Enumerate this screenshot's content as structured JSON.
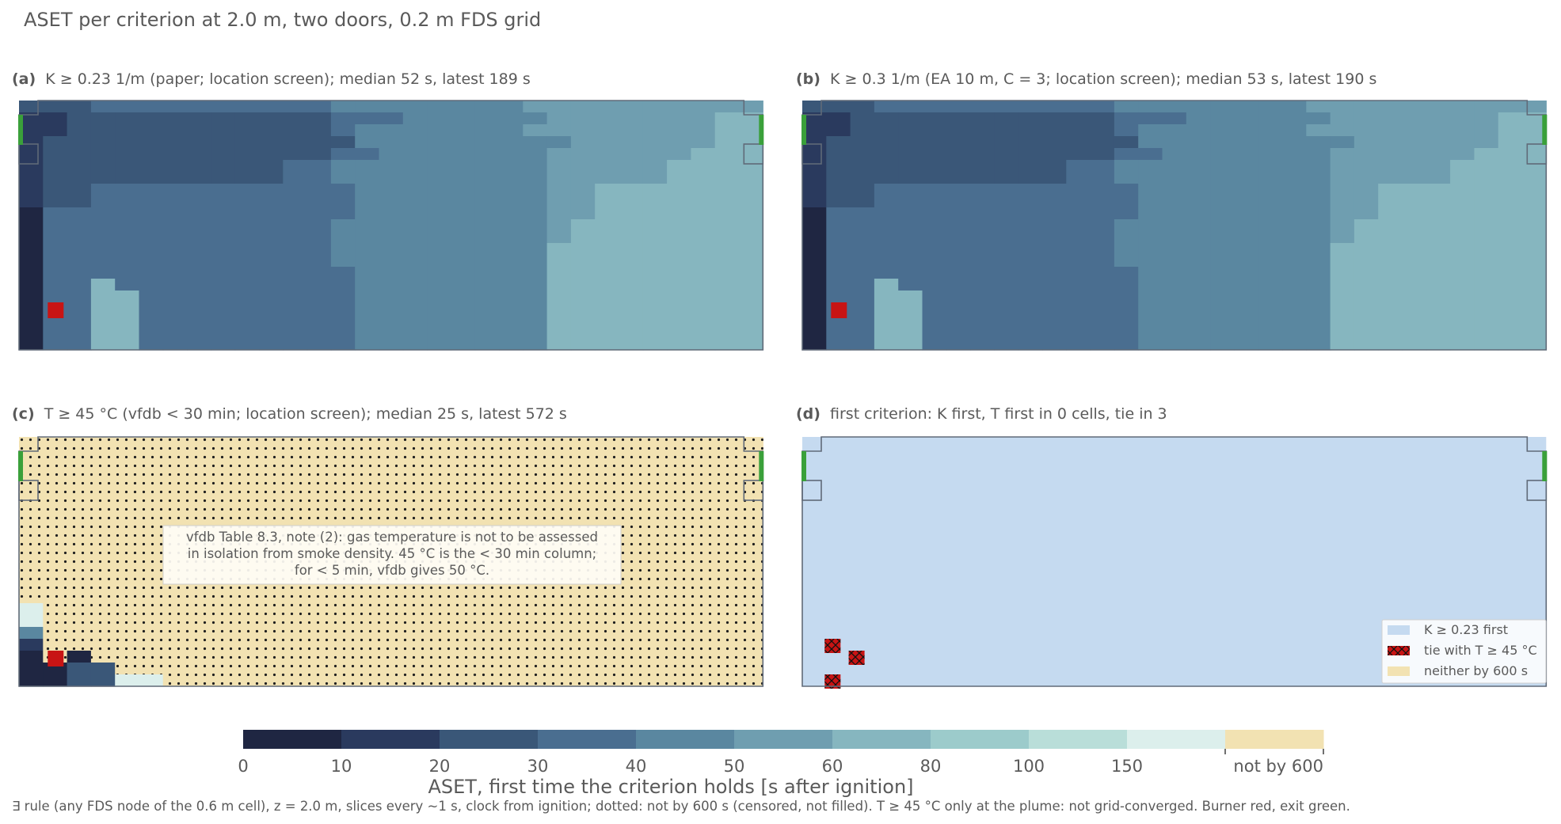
{
  "suptitle": "ASET per criterion at 2.0 m, two doors, 0.2 m FDS grid",
  "footnote": "∃ rule (any FDS node of the 0.6 m cell), z = 2.0 m, slices every ~1 s, clock from ignition; dotted: not by 600 s (censored, not filled). T ≥ 45 °C only at the plume: not grid-converged. Burner red, exit green.",
  "colors": {
    "bins": [
      "#1f2642",
      "#2a3a5e",
      "#3a5778",
      "#4a6e90",
      "#5a87a0",
      "#6f9eb0",
      "#86b6bf",
      "#9ccbcb",
      "#b9ded9",
      "#dcefec"
    ],
    "not_by_600": "#f2e2b2",
    "burner": "#c81414",
    "exit": "#3aa03a",
    "k_first": "#c5daf0",
    "tie": "#c81414",
    "outline": "#606a78"
  },
  "chart_data": [
    {
      "type": "heatmap",
      "panel": "(a)",
      "title": "K ≥ 0.23 1/m (paper; location screen); median 52 s, latest 189 s",
      "criterion": "K ≥ 0.23 1/m",
      "median_s": 52,
      "latest_s": 189,
      "grid_units": "ASET bin index (0–9, see colorbar); 10 = not by 600 s",
      "cells": [
        "2223333333333444444445555555555",
        "1122222222222333444444555555566",
        "1122222222222344444445555555566",
        "1222222222222244444444455555566",
        "1222222222222334444444555555666",
        "1222222222233444444444555556666",
        "1222222222233444444444555556666",
        "1223333333333344444444556666666",
        "1223333333333344444444556666666",
        "0333333333333344444444556666666",
        "0333333333333444444444566666666",
        "0333333333333444444444566666666",
        "0333333333333444444444666666666",
        "0333333333333444444444666666666",
        "0333333333333344444444666666666",
        "0336333333333344444444666666666",
        "0336633333333344444444666666666",
        "0336633333333344444444666666666",
        "0336633333333344444444666666666",
        "0336633333333344444444666666666",
        "0336633333333344444444666666666"
      ],
      "burner_cell": [
        1,
        17
      ]
    },
    {
      "type": "heatmap",
      "panel": "(b)",
      "title": "K ≥ 0.3 1/m (EA 10 m, C = 3; location screen); median 53 s, latest 190 s",
      "criterion": "K ≥ 0.3 1/m",
      "median_s": 53,
      "latest_s": 190,
      "grid_units": "ASET bin index (0–9, see colorbar); 10 = not by 600 s",
      "cells": [
        "2223333333333444444445555555555",
        "1122222222222333444444555555566",
        "1122222222222344444445555555566",
        "1222222222222244444444455555566",
        "1222222222222334444444555555666",
        "1222222222233444444444555556666",
        "1222222222233444444444555556666",
        "1223333333333344444444556666666",
        "1223333333333344444444556666666",
        "0333333333333344444444556666666",
        "0333333333333444444444566666666",
        "0333333333333444444444566666666",
        "0333333333333444444444666666666",
        "0333333333333444444444666666666",
        "0333333333333344444444666666666",
        "0336333333333344444444666666666",
        "0336633333333344444444666666666",
        "0336633333333344444444666666666",
        "0336633333333344444444666666666",
        "0336633333333344444444666666666",
        "0336633333333344444444666666666"
      ],
      "burner_cell": [
        1,
        17
      ]
    },
    {
      "type": "heatmap",
      "panel": "(c)",
      "title": "T ≥ 45 °C (vfdb < 30 min; location screen); median 25 s, latest 572 s",
      "criterion": "T ≥ 45 °C",
      "median_s": 25,
      "latest_s": 572,
      "grid_units": "ASET bin index (0–9, see colorbar); 10 = not by 600 s",
      "annotation": "vfdb Table 8.3, note (2): gas temperature is not to be assessed in isolation from smoke density. 45 °C is the < 30 min column; for < 5 min, vfdb gives 50 °C.",
      "cells": [
        "AAAAAAAAAAAAAAAAAAAAAAAAAAAAAAA",
        "AAAAAAAAAAAAAAAAAAAAAAAAAAAAAAA",
        "AAAAAAAAAAAAAAAAAAAAAAAAAAAAAAA",
        "AAAAAAAAAAAAAAAAAAAAAAAAAAAAAAA",
        "AAAAAAAAAAAAAAAAAAAAAAAAAAAAAAA",
        "AAAAAAAAAAAAAAAAAAAAAAAAAAAAAAA",
        "AAAAAAAAAAAAAAAAAAAAAAAAAAAAAAA",
        "AAAAAAAAAAAAAAAAAAAAAAAAAAAAAAA",
        "AAAAAAAAAAAAAAAAAAAAAAAAAAAAAAA",
        "AAAAAAAAAAAAAAAAAAAAAAAAAAAAAAA",
        "AAAAAAAAAAAAAAAAAAAAAAAAAAAAAAA",
        "AAAAAAAAAAAAAAAAAAAAAAAAAAAAAAA",
        "AAAAAAAAAAAAAAAAAAAAAAAAAAAAAAA",
        "AAAAAAAAAAAAAAAAAAAAAAAAAAAAAAA",
        "9AAAAAAAAAAAAAAAAAAAAAAAAAAAAAA",
        "9AAAAAAAAAAAAAAAAAAAAAAAAAAAAAA",
        "4AAAAAAAAAAAAAAAAAAAAAAAAAAAAAA",
        "1AAAAAAAAAAAAAAAAAAAAAAAAAAAAAA",
        "0A0AAAAAAAAAAAAAAAAAAAAAAAAAAAA",
        "0022AAAAAAAAAAAAAAAAAAAAAAAAAAA",
        "002299AAAAAAAAAAAAAAAAAAAAAAAAA"
      ],
      "burner_cell": [
        1,
        18
      ]
    },
    {
      "type": "heatmap",
      "panel": "(d)",
      "title": "first criterion: K first, T first in 0 cells, tie in 3",
      "k_first_cells": "all other cells",
      "t_first_cells": 0,
      "tie_cells": 3,
      "tie_marks": [
        [
          1,
          17
        ],
        [
          2,
          18
        ],
        [
          1,
          20
        ]
      ],
      "legend": [
        "K ≥ 0.23 first",
        "tie with T ≥ 45 °C",
        "neither by 600 s"
      ],
      "legend_position": "lower-right"
    },
    {
      "type": "colorbar",
      "label": "ASET, first time the criterion holds [s after ignition]",
      "ticks": [
        "0",
        "10",
        "20",
        "30",
        "40",
        "50",
        "60",
        "80",
        "100",
        "150",
        "not by 600"
      ],
      "bin_edges_s": [
        0,
        10,
        20,
        30,
        40,
        50,
        60,
        80,
        100,
        150,
        600
      ]
    }
  ]
}
